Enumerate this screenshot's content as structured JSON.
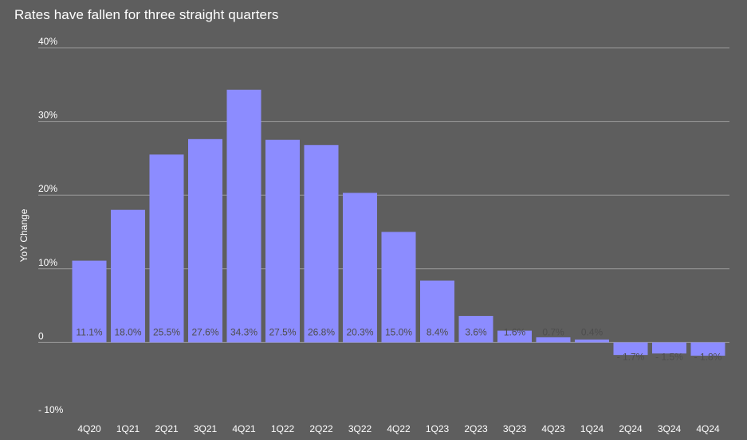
{
  "chart_data": {
    "type": "bar",
    "title": "Rates have fallen for three straight quarters",
    "xlabel": "",
    "ylabel": "YoY Change",
    "categories": [
      "4Q20",
      "1Q21",
      "2Q21",
      "3Q21",
      "4Q21",
      "1Q22",
      "2Q22",
      "3Q22",
      "4Q22",
      "1Q23",
      "2Q23",
      "3Q23",
      "4Q23",
      "1Q24",
      "2Q24",
      "3Q24",
      "4Q24"
    ],
    "values": [
      11.1,
      18.0,
      25.5,
      27.6,
      34.3,
      27.5,
      26.8,
      20.3,
      15.0,
      8.4,
      3.6,
      1.6,
      0.7,
      0.4,
      -1.7,
      -1.5,
      -1.8
    ],
    "data_labels": [
      "11.1%",
      "18.0%",
      "25.5%",
      "27.6%",
      "34.3%",
      "27.5%",
      "26.8%",
      "20.3%",
      "15.0%",
      "8.4%",
      "3.6%",
      "1.6%",
      "0.7%",
      "0.4%",
      "- 1.7%",
      "- 1.5%",
      "- 1.8%"
    ],
    "yticks": [
      40,
      30,
      20,
      10,
      0,
      -10
    ],
    "ytick_labels": [
      "40%",
      "30%",
      "20%",
      "10%",
      "0",
      "- 10%"
    ],
    "ylim": [
      -10,
      40
    ],
    "grid": true,
    "legend": "none",
    "colors": {
      "bar": "#8c8cff",
      "background": "#5e5e5e",
      "grid": "#9a9a9a",
      "text": "#ffffff",
      "label": "#4d4d4d"
    }
  }
}
